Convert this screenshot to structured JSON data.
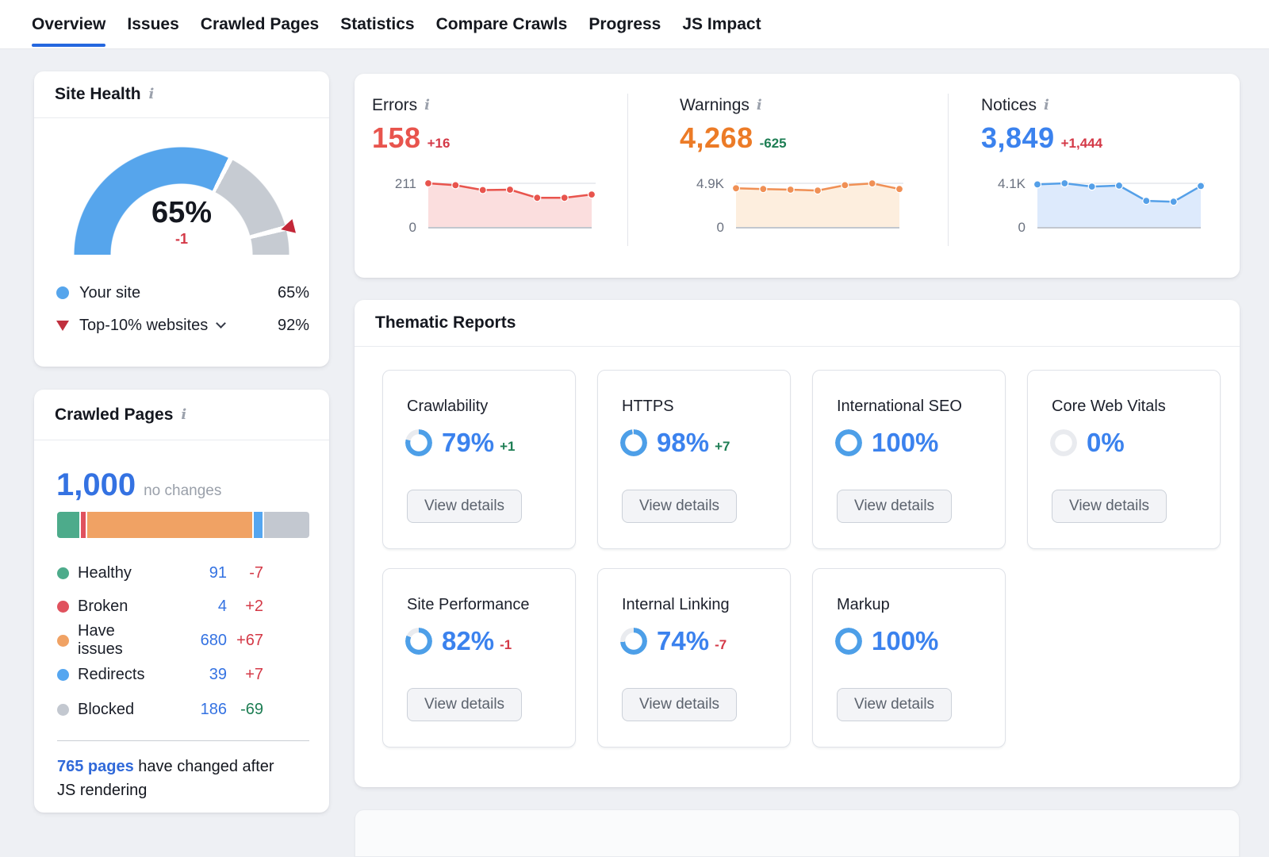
{
  "theme": {
    "accent_blue": "#3b7ded",
    "link_blue": "#3069d9",
    "gauge_blue": "#56a5ec",
    "gauge_gray": "#c6cbd2",
    "donut_fill": "#4d9fe8",
    "donut_rest": "#e9ebef",
    "red": "#d43947",
    "green": "#1e7e54"
  },
  "nav": {
    "tabs": [
      {
        "label": "Overview",
        "active": true
      },
      {
        "label": "Issues",
        "active": false
      },
      {
        "label": "Crawled Pages",
        "active": false
      },
      {
        "label": "Statistics",
        "active": false
      },
      {
        "label": "Compare Crawls",
        "active": false
      },
      {
        "label": "Progress",
        "active": false
      },
      {
        "label": "JS Impact",
        "active": false
      }
    ]
  },
  "site_health": {
    "title": "Site Health",
    "score": "65%",
    "score_pct": 65,
    "delta": "-1",
    "benchmark_pct": 92,
    "legend": [
      {
        "label": "Your site",
        "value": "65%"
      },
      {
        "label": "Top-10% websites",
        "value": "92%"
      }
    ]
  },
  "crawled_pages": {
    "title": "Crawled Pages",
    "total": "1,000",
    "total_note": "no changes",
    "total_count": 1000,
    "categories": [
      {
        "label": "Healthy",
        "count": 91,
        "display": "91",
        "delta": "-7",
        "delta_class": "neg",
        "color": "#4dab8b"
      },
      {
        "label": "Broken",
        "count": 4,
        "display": "4",
        "delta": "+2",
        "delta_class": "neg",
        "color": "#e0525e"
      },
      {
        "label": "Have issues",
        "count": 680,
        "display": "680",
        "delta": "+67",
        "delta_class": "neg",
        "color": "#f0a264"
      },
      {
        "label": "Redirects",
        "count": 39,
        "display": "39",
        "delta": "+7",
        "delta_class": "neg",
        "color": "#55a6f0"
      },
      {
        "label": "Blocked",
        "count": 186,
        "display": "186",
        "delta": "-69",
        "delta_class": "pos",
        "color": "#c3c8d0"
      }
    ],
    "footer_link": "765 pages",
    "footer_rest": " have changed after JS rendering"
  },
  "stats": [
    {
      "title": "Errors",
      "value": "158",
      "delta": "+16",
      "delta_class": "neg",
      "value_color": "#e8544d",
      "line_color": "#e8544d",
      "fill_color": "#fbdede",
      "axis_max_label": "211",
      "axis_min_label": "0",
      "ymax": 211,
      "series": [
        211,
        202,
        179,
        181,
        142,
        142,
        158
      ]
    },
    {
      "title": "Warnings",
      "value": "4,268",
      "delta": "-625",
      "delta_class": "pos",
      "value_color": "#ec7b27",
      "line_color": "#f09055",
      "fill_color": "#fdeede",
      "axis_max_label": "4.9K",
      "axis_min_label": "0",
      "ymax": 4900,
      "series": [
        4350,
        4270,
        4200,
        4100,
        4690,
        4893,
        4268
      ]
    },
    {
      "title": "Notices",
      "value": "3,849",
      "delta": "+1,444",
      "delta_class": "neg",
      "value_color": "#3b82ee",
      "line_color": "#55a0e8",
      "fill_color": "#ddeafc",
      "axis_max_label": "4.1K",
      "axis_min_label": "0",
      "ymax": 4100,
      "series": [
        4000,
        4100,
        3800,
        3890,
        2480,
        2405,
        3849
      ]
    }
  ],
  "thematic": {
    "title": "Thematic Reports",
    "button_label": "View details",
    "reports": [
      {
        "title": "Crawlability",
        "score": "79%",
        "pct": 79,
        "delta": "+1",
        "delta_class": "pos"
      },
      {
        "title": "HTTPS",
        "score": "98%",
        "pct": 98,
        "delta": "+7",
        "delta_class": "pos"
      },
      {
        "title": "International SEO",
        "score": "100%",
        "pct": 100,
        "delta": "",
        "delta_class": ""
      },
      {
        "title": "Core Web Vitals",
        "score": "0%",
        "pct": 0,
        "delta": "",
        "delta_class": ""
      },
      {
        "title": "Site Performance",
        "score": "82%",
        "pct": 82,
        "delta": "-1",
        "delta_class": "neg"
      },
      {
        "title": "Internal Linking",
        "score": "74%",
        "pct": 74,
        "delta": "-7",
        "delta_class": "neg"
      },
      {
        "title": "Markup",
        "score": "100%",
        "pct": 100,
        "delta": "",
        "delta_class": ""
      }
    ]
  },
  "chart_data": [
    {
      "type": "gauge",
      "title": "Site Health",
      "value": 65,
      "change": -1,
      "benchmark": 92,
      "range": [
        0,
        100
      ],
      "legend": [
        {
          "label": "Your site",
          "value": 65
        },
        {
          "label": "Top-10% websites",
          "value": 92
        }
      ]
    },
    {
      "type": "area",
      "title": "Errors",
      "current": 158,
      "change": 16,
      "ylim": [
        0,
        211
      ],
      "values": [
        211,
        202,
        179,
        181,
        142,
        142,
        158
      ],
      "grid": "top-and-zero",
      "legend_position": "none"
    },
    {
      "type": "area",
      "title": "Warnings",
      "current": 4268,
      "change": -625,
      "ylim": [
        0,
        4900
      ],
      "values": [
        4350,
        4270,
        4200,
        4100,
        4690,
        4893,
        4268
      ],
      "grid": "top-and-zero",
      "legend_position": "none"
    },
    {
      "type": "area",
      "title": "Notices",
      "current": 3849,
      "change": 1444,
      "ylim": [
        0,
        4100
      ],
      "values": [
        4000,
        4100,
        3800,
        3890,
        2480,
        2405,
        3849
      ],
      "grid": "top-and-zero",
      "legend_position": "none"
    },
    {
      "type": "bar",
      "title": "Crawled Pages breakdown",
      "stacked": true,
      "total": 1000,
      "categories": [
        "Healthy",
        "Broken",
        "Have issues",
        "Redirects",
        "Blocked"
      ],
      "values": [
        91,
        4,
        680,
        39,
        186
      ]
    },
    {
      "type": "pie",
      "title": "Thematic report scores (%)",
      "categories": [
        "Crawlability",
        "HTTPS",
        "International SEO",
        "Core Web Vitals",
        "Site Performance",
        "Internal Linking",
        "Markup"
      ],
      "values": [
        79,
        98,
        100,
        0,
        82,
        74,
        100
      ]
    }
  ]
}
